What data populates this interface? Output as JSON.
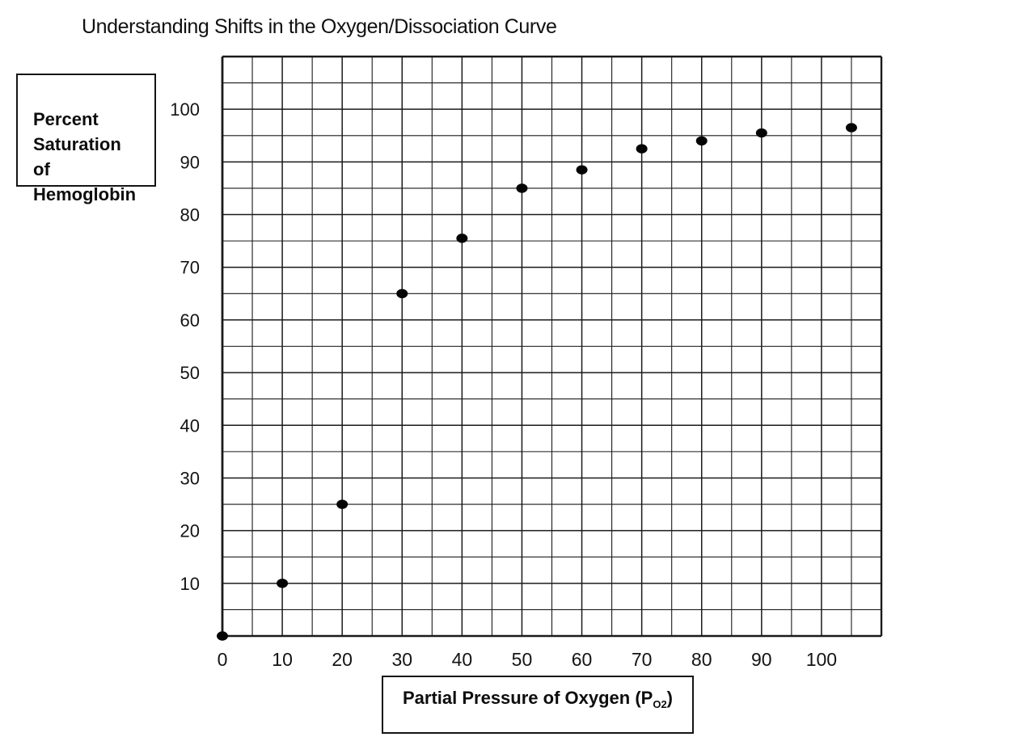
{
  "page": {
    "title": "Understanding Shifts in the Oxygen/Dissociation Curve"
  },
  "y_axis_box": {
    "label": "Percent\nSaturation\nof\nHemoglobin"
  },
  "x_axis_box": {
    "prefix": "Partial Pressure of Oxygen (P",
    "sub": "O2",
    "suffix": ")"
  },
  "chart_data": {
    "type": "scatter",
    "title": "Understanding Shifts in the Oxygen/Dissociation Curve",
    "xlabel": "Partial Pressure of Oxygen (PO2)",
    "ylabel": "Percent Saturation of Hemoglobin",
    "points": [
      [
        0,
        0
      ],
      [
        10,
        10
      ],
      [
        20,
        25
      ],
      [
        30,
        65
      ],
      [
        40,
        75.5
      ],
      [
        50,
        85
      ],
      [
        60,
        88.5
      ],
      [
        70,
        92.5
      ],
      [
        80,
        94
      ],
      [
        90,
        95.5
      ],
      [
        105,
        96.5
      ]
    ],
    "xlim": [
      0,
      110
    ],
    "ylim": [
      0,
      110
    ],
    "grid": "on",
    "grid_step": 5,
    "x_ticks": [
      0,
      10,
      20,
      30,
      40,
      50,
      60,
      70,
      80,
      90,
      100
    ],
    "y_ticks": [
      10,
      20,
      30,
      40,
      50,
      60,
      70,
      80,
      90,
      100
    ],
    "point_color": "#050505",
    "grid_color": "#1a1a1a",
    "legend": "none"
  }
}
